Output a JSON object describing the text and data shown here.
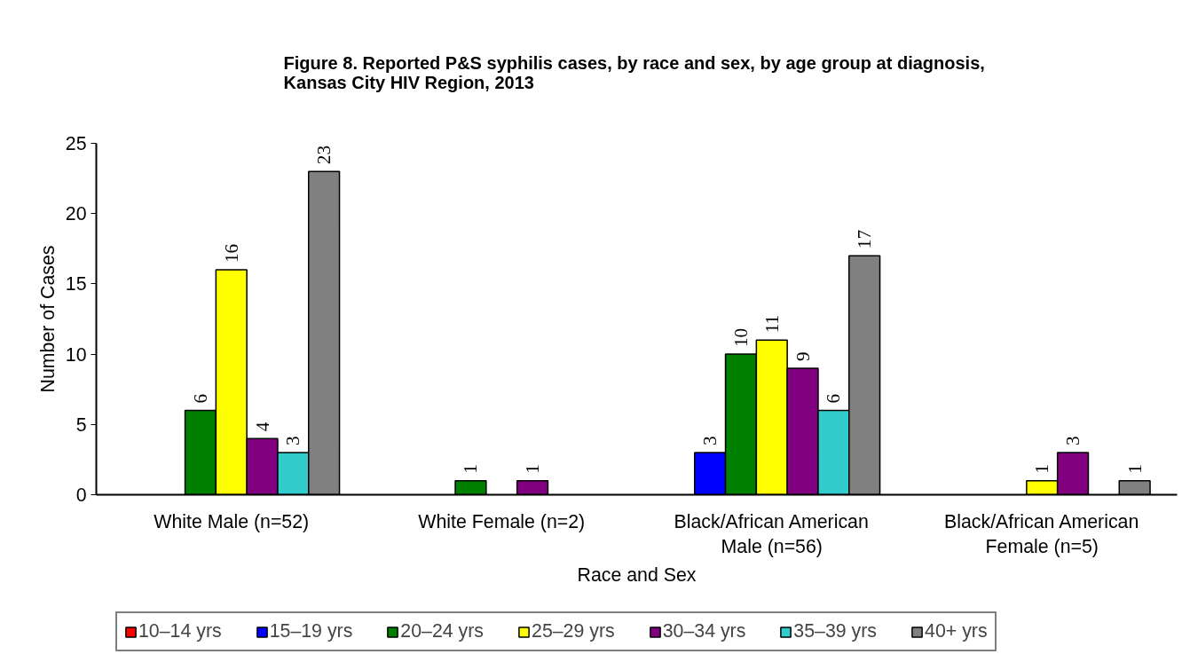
{
  "chart_data": {
    "type": "bar",
    "title": "Figure 8.  Reported P&S syphilis cases, by race and sex, by age group at diagnosis,\nKansas City HIV Region, 2013",
    "xlabel": "Race and Sex",
    "ylabel": "Number of Cases",
    "categories": [
      "White Male (n=52)",
      "White Female (n=2)",
      "Black/African American\nMale (n=56)",
      "Black/African American\nFemale (n=5)"
    ],
    "series": [
      {
        "name": "10–14 yrs",
        "color": "#ff0000",
        "values": [
          null,
          null,
          null,
          null
        ]
      },
      {
        "name": "15–19 yrs",
        "color": "#0000ff",
        "values": [
          null,
          null,
          3,
          null
        ]
      },
      {
        "name": "20–24 yrs",
        "color": "#008000",
        "values": [
          6,
          1,
          10,
          null
        ]
      },
      {
        "name": "25–29 yrs",
        "color": "#ffff00",
        "values": [
          16,
          null,
          11,
          1
        ]
      },
      {
        "name": "30–34 yrs",
        "color": "#800080",
        "values": [
          4,
          1,
          9,
          3
        ]
      },
      {
        "name": "35–39 yrs",
        "color": "#33cccc",
        "values": [
          3,
          null,
          6,
          null
        ]
      },
      {
        "name": "40+ yrs",
        "color": "#808080",
        "values": [
          23,
          null,
          17,
          1
        ]
      }
    ],
    "ylim": [
      0,
      25
    ],
    "yticks": [
      0,
      5,
      10,
      15,
      20,
      25
    ],
    "grid": false,
    "legend": "bottom",
    "data_labels": true
  }
}
